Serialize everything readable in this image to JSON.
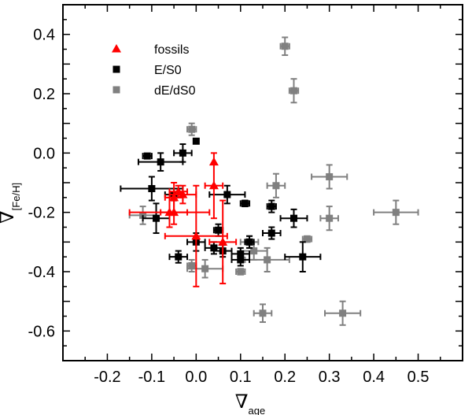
{
  "chart_data": {
    "type": "scatter",
    "xlabel": "∇",
    "xlabel_sub": "age",
    "ylabel": "∇",
    "ylabel_sub": "[Fe/H]",
    "xlim": [
      -0.3,
      0.6
    ],
    "ylim": [
      -0.7,
      0.5
    ],
    "xticks": [
      -0.2,
      -0.1,
      0.0,
      0.1,
      0.2,
      0.3,
      0.4,
      0.5
    ],
    "xtick_labels": [
      "-0.2",
      "-0.1",
      "0.0",
      "0.1",
      "0.2",
      "0.3",
      "0.4",
      "0.5"
    ],
    "yticks": [
      -0.6,
      -0.4,
      -0.2,
      0.0,
      0.2,
      0.4
    ],
    "ytick_labels": [
      "-0.6",
      "-0.4",
      "-0.2",
      "0.0",
      "0.2",
      "0.4"
    ],
    "grid": false,
    "legend_position": "top-left",
    "series": [
      {
        "name": "fossils",
        "marker": "triangle",
        "color": "#ff0000",
        "points": [
          {
            "x": 0.04,
            "y": -0.03,
            "xerr": 0.0,
            "yerr": 0.0
          },
          {
            "x": -0.04,
            "y": -0.13,
            "xerr": 0.02,
            "yerr": 0.02
          },
          {
            "x": -0.03,
            "y": -0.14,
            "xerr": 0.03,
            "yerr": 0.03
          },
          {
            "x": -0.05,
            "y": -0.15,
            "xerr": 0.02,
            "yerr": 0.05
          },
          {
            "x": 0.04,
            "y": -0.11,
            "xerr": 0.02,
            "yerr": 0.11
          },
          {
            "x": -0.06,
            "y": -0.2,
            "xerr": 0.09,
            "yerr": 0.05
          },
          {
            "x": -0.05,
            "y": -0.2,
            "xerr": 0.03,
            "yerr": 0.04
          },
          {
            "x": 0.0,
            "y": -0.28,
            "xerr": 0.07,
            "yerr": 0.17
          },
          {
            "x": 0.06,
            "y": -0.3,
            "xerr": 0.03,
            "yerr": 0.14
          }
        ]
      },
      {
        "name": "E/S0",
        "marker": "square",
        "color": "#000000",
        "points": [
          {
            "x": -0.11,
            "y": -0.01,
            "xerr": 0.01,
            "yerr": 0.0
          },
          {
            "x": -0.08,
            "y": -0.03,
            "xerr": 0.05,
            "yerr": 0.03
          },
          {
            "x": -0.03,
            "y": 0.0,
            "xerr": 0.02,
            "yerr": 0.03
          },
          {
            "x": 0.0,
            "y": 0.04,
            "xerr": 0.0,
            "yerr": 0.0
          },
          {
            "x": -0.1,
            "y": -0.12,
            "xerr": 0.07,
            "yerr": 0.04
          },
          {
            "x": -0.05,
            "y": -0.14,
            "xerr": 0.02,
            "yerr": 0.02
          },
          {
            "x": 0.07,
            "y": -0.14,
            "xerr": 0.04,
            "yerr": 0.03
          },
          {
            "x": 0.11,
            "y": -0.17,
            "xerr": 0.01,
            "yerr": 0.01
          },
          {
            "x": 0.17,
            "y": -0.18,
            "xerr": 0.01,
            "yerr": 0.02
          },
          {
            "x": 0.22,
            "y": -0.22,
            "xerr": 0.03,
            "yerr": 0.03
          },
          {
            "x": -0.09,
            "y": -0.22,
            "xerr": 0.03,
            "yerr": 0.05
          },
          {
            "x": 0.05,
            "y": -0.26,
            "xerr": 0.01,
            "yerr": 0.02
          },
          {
            "x": 0.17,
            "y": -0.27,
            "xerr": 0.02,
            "yerr": 0.02
          },
          {
            "x": 0.0,
            "y": -0.3,
            "xerr": 0.02,
            "yerr": 0.03
          },
          {
            "x": 0.12,
            "y": -0.3,
            "xerr": 0.01,
            "yerr": 0.02
          },
          {
            "x": 0.04,
            "y": -0.32,
            "xerr": 0.02,
            "yerr": 0.02
          },
          {
            "x": 0.06,
            "y": -0.33,
            "xerr": 0.02,
            "yerr": 0.02
          },
          {
            "x": 0.1,
            "y": -0.34,
            "xerr": 0.02,
            "yerr": 0.02
          },
          {
            "x": -0.04,
            "y": -0.35,
            "xerr": 0.02,
            "yerr": 0.02
          },
          {
            "x": 0.1,
            "y": -0.36,
            "xerr": 0.02,
            "yerr": 0.02
          },
          {
            "x": 0.24,
            "y": -0.35,
            "xerr": 0.04,
            "yerr": 0.05
          }
        ]
      },
      {
        "name": "dE/dS0",
        "marker": "square",
        "color": "#808080",
        "points": [
          {
            "x": 0.2,
            "y": 0.36,
            "xerr": 0.01,
            "yerr": 0.03
          },
          {
            "x": 0.22,
            "y": 0.21,
            "xerr": 0.01,
            "yerr": 0.04
          },
          {
            "x": -0.01,
            "y": 0.08,
            "xerr": 0.01,
            "yerr": 0.02
          },
          {
            "x": 0.18,
            "y": -0.11,
            "xerr": 0.02,
            "yerr": 0.04
          },
          {
            "x": 0.3,
            "y": -0.08,
            "xerr": 0.04,
            "yerr": 0.04
          },
          {
            "x": -0.12,
            "y": -0.21,
            "xerr": 0.03,
            "yerr": 0.03
          },
          {
            "x": 0.3,
            "y": -0.22,
            "xerr": 0.02,
            "yerr": 0.04
          },
          {
            "x": 0.45,
            "y": -0.2,
            "xerr": 0.05,
            "yerr": 0.04
          },
          {
            "x": 0.25,
            "y": -0.29,
            "xerr": 0.01,
            "yerr": 0.01
          },
          {
            "x": 0.12,
            "y": -0.3,
            "xerr": 0.02,
            "yerr": 0.02
          },
          {
            "x": 0.13,
            "y": -0.33,
            "xerr": 0.03,
            "yerr": 0.03
          },
          {
            "x": 0.16,
            "y": -0.36,
            "xerr": 0.05,
            "yerr": 0.04
          },
          {
            "x": -0.01,
            "y": -0.38,
            "xerr": 0.01,
            "yerr": 0.02
          },
          {
            "x": 0.02,
            "y": -0.39,
            "xerr": 0.04,
            "yerr": 0.03
          },
          {
            "x": 0.1,
            "y": -0.4,
            "xerr": 0.01,
            "yerr": 0.01
          },
          {
            "x": 0.15,
            "y": -0.54,
            "xerr": 0.02,
            "yerr": 0.03
          },
          {
            "x": 0.33,
            "y": -0.54,
            "xerr": 0.04,
            "yerr": 0.04
          }
        ]
      }
    ]
  }
}
